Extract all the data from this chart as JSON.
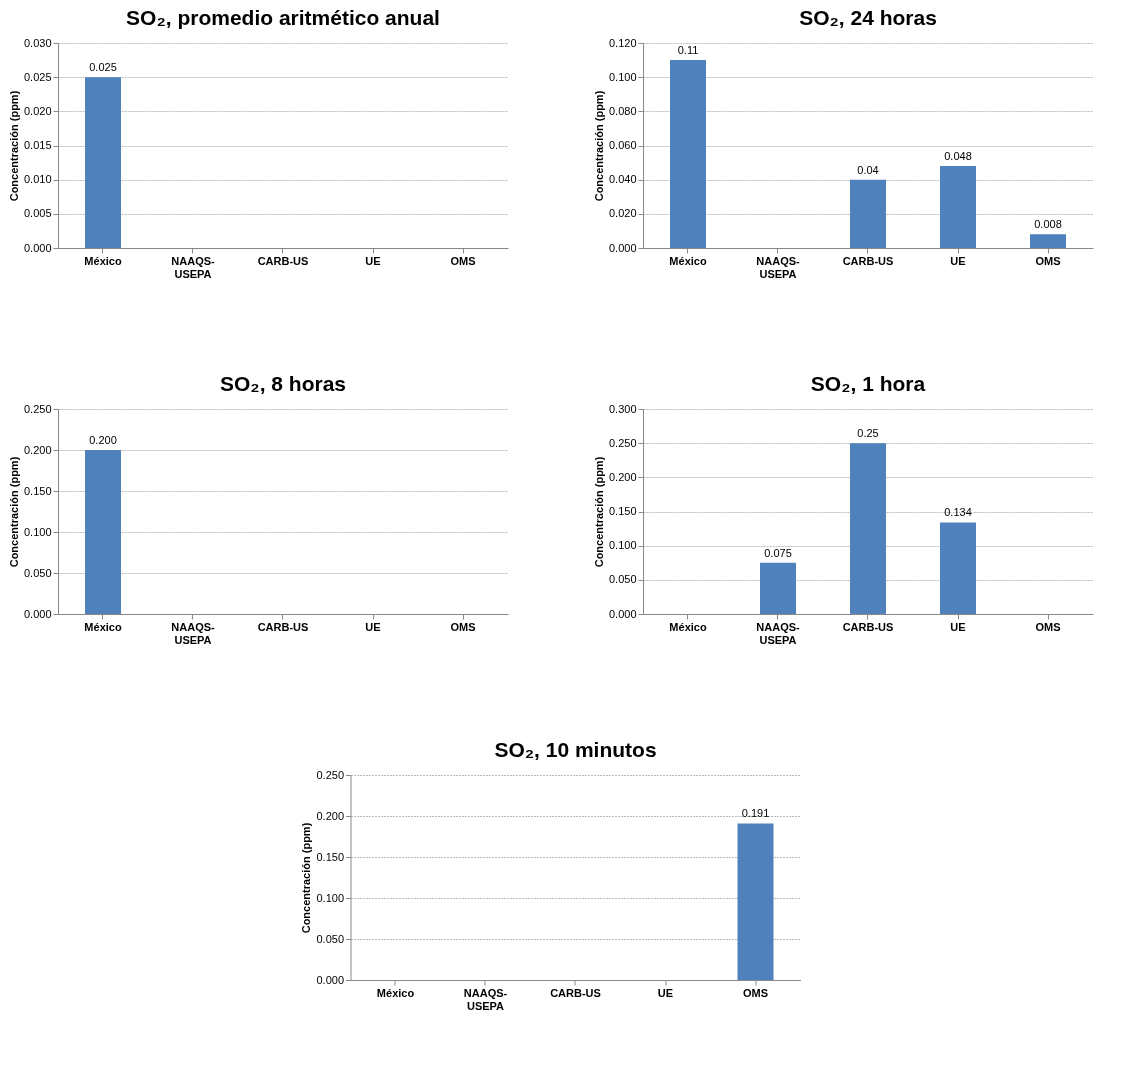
{
  "chart_data": [
    {
      "type": "bar",
      "title": "SO₂, promedio aritmético anual",
      "ylabel": "Concentración (ppm)",
      "categories": [
        "México",
        "NAAQS-USEPA",
        "CARB-US",
        "UE",
        "OMS"
      ],
      "values": [
        0.025,
        null,
        null,
        null,
        null
      ],
      "value_labels": [
        "0.025",
        null,
        null,
        null,
        null
      ],
      "color": "#4f81bd",
      "ylim": [
        0,
        0.03
      ],
      "yticks": [
        {
          "value": 0,
          "label": "0.000"
        },
        {
          "value": 0.005,
          "label": "0.005"
        },
        {
          "value": 0.01,
          "label": "0.010"
        },
        {
          "value": 0.015,
          "label": "0.015"
        },
        {
          "value": 0.02,
          "label": "0.020"
        },
        {
          "value": 0.025,
          "label": "0.025"
        },
        {
          "value": 0.03,
          "label": "0.030"
        }
      ],
      "grid": "y"
    },
    {
      "type": "bar",
      "title": "SO₂, 24 horas",
      "ylabel": "Concentración (ppm)",
      "categories": [
        "México",
        "NAAQS-USEPA",
        "CARB-US",
        "UE",
        "OMS"
      ],
      "values": [
        0.11,
        null,
        0.04,
        0.048,
        0.008
      ],
      "value_labels": [
        "0.11",
        null,
        "0.04",
        "0.048",
        "0.008"
      ],
      "color": "#4f81bd",
      "ylim": [
        0,
        0.12
      ],
      "yticks": [
        {
          "value": 0,
          "label": "0.000"
        },
        {
          "value": 0.02,
          "label": "0.020"
        },
        {
          "value": 0.04,
          "label": "0.040"
        },
        {
          "value": 0.06,
          "label": "0.060"
        },
        {
          "value": 0.08,
          "label": "0.080"
        },
        {
          "value": 0.1,
          "label": "0.100"
        },
        {
          "value": 0.12,
          "label": "0.120"
        }
      ],
      "grid": "y"
    },
    {
      "type": "bar",
      "title": "SO₂, 8 horas",
      "ylabel": "Concentración (ppm)",
      "categories": [
        "México",
        "NAAQS-USEPA",
        "CARB-US",
        "UE",
        "OMS"
      ],
      "values": [
        0.2,
        null,
        null,
        null,
        null
      ],
      "value_labels": [
        "0.200",
        null,
        null,
        null,
        null
      ],
      "color": "#4f81bd",
      "ylim": [
        0,
        0.25
      ],
      "yticks": [
        {
          "value": 0,
          "label": "0.000"
        },
        {
          "value": 0.05,
          "label": "0.050"
        },
        {
          "value": 0.1,
          "label": "0.100"
        },
        {
          "value": 0.15,
          "label": "0.150"
        },
        {
          "value": 0.2,
          "label": "0.200"
        },
        {
          "value": 0.25,
          "label": "0.250"
        }
      ],
      "grid": "y"
    },
    {
      "type": "bar",
      "title": "SO₂, 1 hora",
      "ylabel": "Concentración (ppm)",
      "categories": [
        "México",
        "NAAQS-USEPA",
        "CARB-US",
        "UE",
        "OMS"
      ],
      "values": [
        null,
        0.075,
        0.25,
        0.134,
        null
      ],
      "value_labels": [
        null,
        "0.075",
        "0.25",
        "0.134",
        null
      ],
      "color": "#4f81bd",
      "ylim": [
        0,
        0.3
      ],
      "yticks": [
        {
          "value": 0,
          "label": "0.000"
        },
        {
          "value": 0.05,
          "label": "0.050"
        },
        {
          "value": 0.1,
          "label": "0.100"
        },
        {
          "value": 0.15,
          "label": "0.150"
        },
        {
          "value": 0.2,
          "label": "0.200"
        },
        {
          "value": 0.25,
          "label": "0.250"
        },
        {
          "value": 0.3,
          "label": "0.300"
        }
      ],
      "grid": "y"
    },
    {
      "type": "bar",
      "title": "SO₂, 10 minutos",
      "ylabel": "Concentración (ppm)",
      "categories": [
        "México",
        "NAAQS-USEPA",
        "CARB-US",
        "UE",
        "OMS"
      ],
      "values": [
        null,
        null,
        null,
        null,
        0.191
      ],
      "value_labels": [
        null,
        null,
        null,
        null,
        "0.191"
      ],
      "color": "#4f81bd",
      "ylim": [
        0,
        0.25
      ],
      "yticks": [
        {
          "value": 0,
          "label": "0.000"
        },
        {
          "value": 0.05,
          "label": "0.050"
        },
        {
          "value": 0.1,
          "label": "0.100"
        },
        {
          "value": 0.15,
          "label": "0.150"
        },
        {
          "value": 0.2,
          "label": "0.200"
        },
        {
          "value": 0.25,
          "label": "0.250"
        }
      ],
      "grid": "y"
    }
  ]
}
